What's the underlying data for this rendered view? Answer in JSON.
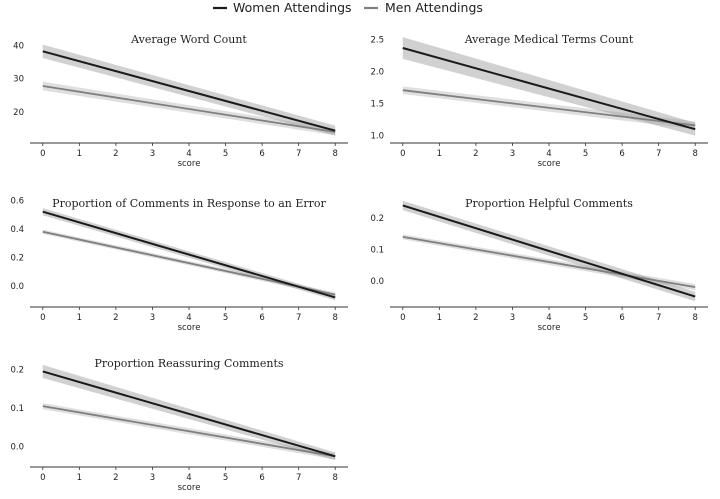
{
  "legend": {
    "items": [
      {
        "label": "Women Attendings",
        "color": "#1a1a1a"
      },
      {
        "label": "Men Attendings",
        "color": "#7f7f7f"
      }
    ],
    "placement": "top-center"
  },
  "chart_data": [
    {
      "type": "line",
      "title": "Average Word Count",
      "xlabel": "score",
      "xticks": [
        0,
        1,
        2,
        3,
        4,
        5,
        6,
        7,
        8
      ],
      "yticks": [
        20,
        30,
        40
      ],
      "xlim": [
        -0.35,
        8.35
      ],
      "ylim": [
        11,
        44
      ],
      "series": [
        {
          "name": "Women Attendings",
          "x": [
            0,
            8
          ],
          "y": [
            38.2,
            14.4
          ],
          "ci_halfwidth": [
            2.0,
            1.5
          ]
        },
        {
          "name": "Men Attendings",
          "x": [
            0,
            8
          ],
          "y": [
            27.8,
            14.0
          ],
          "ci_halfwidth": [
            1.3,
            1.0
          ]
        }
      ]
    },
    {
      "type": "line",
      "title": "Average Medical Terms Count",
      "xlabel": "score",
      "xticks": [
        0,
        1,
        2,
        3,
        4,
        5,
        6,
        7,
        8
      ],
      "yticks": [
        1.0,
        1.5,
        2.0,
        2.5
      ],
      "xlim": [
        -0.35,
        8.35
      ],
      "ylim": [
        0.9,
        2.62
      ],
      "series": [
        {
          "name": "Women Attendings",
          "x": [
            0,
            8
          ],
          "y": [
            2.37,
            1.1
          ],
          "ci_halfwidth": [
            0.17,
            0.1
          ]
        },
        {
          "name": "Men Attendings",
          "x": [
            0,
            8
          ],
          "y": [
            1.71,
            1.16
          ],
          "ci_halfwidth": [
            0.06,
            0.06
          ]
        }
      ]
    },
    {
      "type": "line",
      "title": "Proportion of Comments in Response to an Error",
      "xlabel": "score",
      "xticks": [
        0,
        1,
        2,
        3,
        4,
        5,
        6,
        7,
        8
      ],
      "yticks": [
        0.0,
        0.2,
        0.4,
        0.6
      ],
      "xlim": [
        -0.35,
        8.35
      ],
      "ylim": [
        -0.14,
        0.63
      ],
      "series": [
        {
          "name": "Women Attendings",
          "x": [
            0,
            8
          ],
          "y": [
            0.52,
            -0.08
          ],
          "ci_halfwidth": [
            0.025,
            0.02
          ]
        },
        {
          "name": "Men Attendings",
          "x": [
            0,
            8
          ],
          "y": [
            0.38,
            -0.06
          ],
          "ci_halfwidth": [
            0.015,
            0.015
          ]
        }
      ]
    },
    {
      "type": "line",
      "title": "Proportion Helpful Comments",
      "xlabel": "score",
      "xticks": [
        0,
        1,
        2,
        3,
        4,
        5,
        6,
        7,
        8
      ],
      "yticks": [
        0.0,
        0.1,
        0.2
      ],
      "xlim": [
        -0.35,
        8.35
      ],
      "ylim": [
        -0.08,
        0.27
      ],
      "series": [
        {
          "name": "Women Attendings",
          "x": [
            0,
            8
          ],
          "y": [
            0.24,
            -0.05
          ],
          "ci_halfwidth": [
            0.015,
            0.015
          ]
        },
        {
          "name": "Men Attendings",
          "x": [
            0,
            8
          ],
          "y": [
            0.14,
            -0.02
          ],
          "ci_halfwidth": [
            0.008,
            0.01
          ]
        }
      ]
    },
    {
      "type": "line",
      "title": "Proportion Reassuring Comments",
      "xlabel": "score",
      "xticks": [
        0,
        1,
        2,
        3,
        4,
        5,
        6,
        7,
        8
      ],
      "yticks": [
        0.0,
        0.1,
        0.2
      ],
      "xlim": [
        -0.35,
        8.35
      ],
      "ylim": [
        -0.05,
        0.235
      ],
      "series": [
        {
          "name": "Women Attendings",
          "x": [
            0,
            8
          ],
          "y": [
            0.195,
            -0.025
          ],
          "ci_halfwidth": [
            0.017,
            0.01
          ]
        },
        {
          "name": "Men Attendings",
          "x": [
            0,
            8
          ],
          "y": [
            0.105,
            -0.025
          ],
          "ci_halfwidth": [
            0.008,
            0.008
          ]
        }
      ]
    }
  ]
}
